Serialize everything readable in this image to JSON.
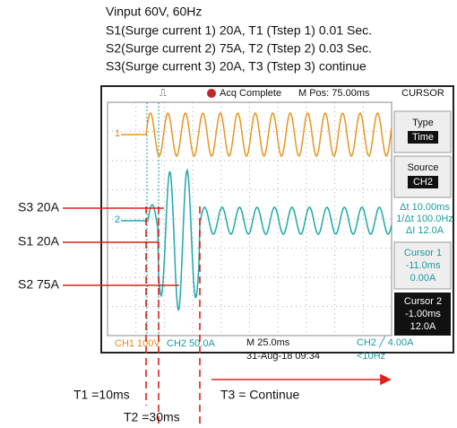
{
  "header": {
    "lines": [
      "Vinput 60V, 60Hz",
      "S1(Surge current 1) 20A, T1 (Tstep 1) 0.01 Sec.",
      "S2(Surge current 2) 75A, T2 (Tstep 2) 0.03 Sec.",
      "S3(Surge current 3) 20A, T3 (Tstep 3) continue"
    ]
  },
  "scope": {
    "status": "Acq Complete",
    "mpos": "M Pos: 75.00ms",
    "menu_title": "CURSOR",
    "menu": [
      {
        "label": "Type",
        "value": "Time"
      },
      {
        "label": "Source",
        "value": "CH2"
      }
    ],
    "readouts": [
      "Δt 10.00ms",
      "1/Δt 100.0Hz",
      "ΔI 12.0A"
    ],
    "cursor1": [
      "Cursor 1",
      "-11.0ms",
      "0.00A"
    ],
    "cursor2": [
      "Cursor 2",
      "-1.00ms",
      "12.0A"
    ],
    "ch1": "CH1  100V",
    "ch2": "CH2  50.0A",
    "timebase": "M 25.0ms",
    "datetime": "31-Aug-18 09:34",
    "trigger": "CH2 ╱ 4.00A",
    "freq": "<10Hz",
    "marker1": "1",
    "marker2": "2"
  },
  "annotations": {
    "s3": "S3 20A",
    "s1": "S1 20A",
    "s2": "S2 75A",
    "t1": "T1 =10ms",
    "t2": "T2 =30ms",
    "t3": "T3 = Continue"
  }
}
